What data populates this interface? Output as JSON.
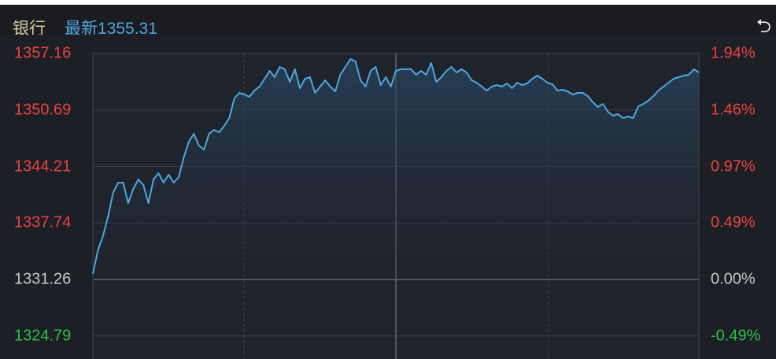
{
  "header": {
    "name": "银行",
    "latest_label": "最新1355.31",
    "back_icon": "undo-arrow-icon"
  },
  "colors": {
    "up": "#e8443f",
    "down": "#2dbf4c",
    "flat": "#c8c8c8",
    "line": "#4ea6e0",
    "grid": "#3a3e46"
  },
  "chart_data": {
    "type": "area",
    "title": "",
    "xlabel": "",
    "ylabel": "",
    "reference_price": 1331.26,
    "ylim": [
      1324.79,
      1357.16
    ],
    "grid": true,
    "left_ticks": [
      "1357.16",
      "1350.69",
      "1344.21",
      "1337.74",
      "1331.26",
      "1324.79"
    ],
    "left_tick_values": [
      1357.16,
      1350.69,
      1344.21,
      1337.74,
      1331.26,
      1324.79
    ],
    "right_ticks": [
      "1.94%",
      "1.46%",
      "0.97%",
      "0.49%",
      "0.00%",
      "-0.49%"
    ],
    "values": [
      1331.89,
      1334.6,
      1336.22,
      1338.48,
      1341.19,
      1342.36,
      1342.36,
      1340.01,
      1341.64,
      1342.72,
      1342.09,
      1340.01,
      1342.72,
      1343.44,
      1342.36,
      1343.26,
      1342.36,
      1342.99,
      1345.25,
      1347.05,
      1347.96,
      1346.6,
      1346.15,
      1347.96,
      1348.41,
      1348.14,
      1348.86,
      1349.76,
      1352.02,
      1352.65,
      1352.47,
      1352.2,
      1352.92,
      1353.37,
      1354.27,
      1355.17,
      1354.45,
      1355.63,
      1355.36,
      1353.91,
      1355.36,
      1353.19,
      1354.27,
      1354.45,
      1352.65,
      1353.37,
      1354.09,
      1353.37,
      1352.83,
      1354.72,
      1355.63,
      1356.53,
      1356.26,
      1354.09,
      1353.37,
      1355.17,
      1355.63,
      1353.55,
      1354.45,
      1353.37,
      1355.17,
      1355.36,
      1355.36,
      1355.36,
      1354.72,
      1355.17,
      1354.72,
      1356.08,
      1353.91,
      1354.45,
      1355.17,
      1355.63,
      1354.99,
      1355.36,
      1354.99,
      1354.09,
      1353.82,
      1353.37,
      1352.92,
      1353.37,
      1353.55,
      1353.37,
      1353.73,
      1353.19,
      1353.82,
      1353.55,
      1353.73,
      1354.27,
      1354.63,
      1354.27,
      1353.82,
      1353.64,
      1352.92,
      1353.01,
      1352.83,
      1352.47,
      1352.65,
      1352.65,
      1352.29,
      1351.57,
      1351.02,
      1351.38,
      1350.48,
      1350.03,
      1350.21,
      1349.76,
      1349.94,
      1349.76,
      1351.11,
      1351.38,
      1351.75,
      1352.29,
      1352.92,
      1353.37,
      1353.82,
      1354.27,
      1354.45,
      1354.63,
      1354.72,
      1355.36,
      1354.99
    ]
  }
}
